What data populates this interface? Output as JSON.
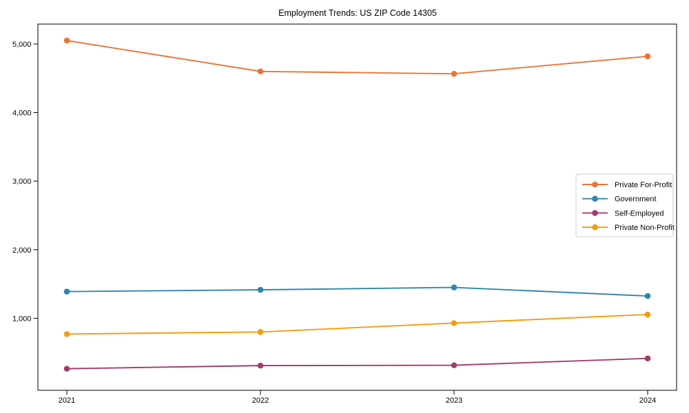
{
  "page": {
    "background": "#ffffff"
  },
  "chart_data": {
    "type": "line",
    "title": "Employment Trends: US ZIP Code 14305",
    "categories": [
      "2021",
      "2022",
      "2023",
      "2024"
    ],
    "series": [
      {
        "name": "Private For-Profit",
        "color": "#E8743B",
        "values": [
          5050,
          4600,
          4565,
          4820
        ]
      },
      {
        "name": "Government",
        "color": "#2E86AB",
        "values": [
          1390,
          1415,
          1450,
          1325
        ]
      },
      {
        "name": "Self-Employed",
        "color": "#A23B72",
        "values": [
          265,
          310,
          315,
          415
        ]
      },
      {
        "name": "Private Non-Profit",
        "color": "#F49D0D",
        "values": [
          770,
          800,
          930,
          1055
        ]
      }
    ],
    "xlabel": "",
    "ylabel": "",
    "y_ticks": [
      {
        "value": 1000,
        "label": "1,000"
      },
      {
        "value": 2000,
        "label": "2,000"
      },
      {
        "value": 3000,
        "label": "3,000"
      },
      {
        "value": 4000,
        "label": "4,000"
      },
      {
        "value": 5000,
        "label": "5,000"
      }
    ],
    "ylim": [
      -50,
      5290
    ],
    "grid": false,
    "legend_position": "center-right",
    "axis_color": "#000000",
    "legend_border_color": "#cccccc",
    "plot_background": "#ffffff"
  }
}
